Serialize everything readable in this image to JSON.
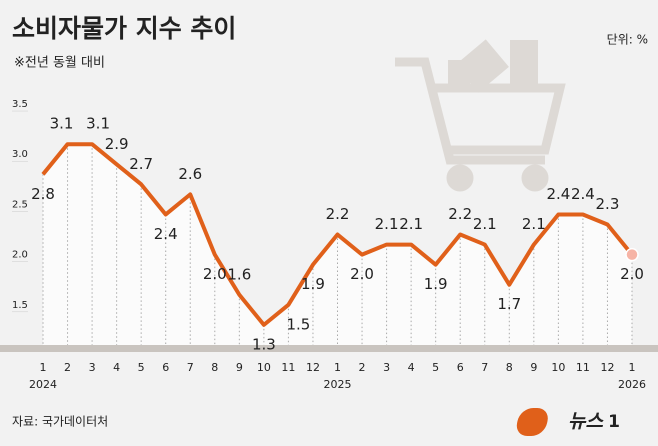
{
  "chart_data": {
    "type": "line",
    "title": "소비자물가 지수 추이",
    "subtitle": "※전년 동월 대비",
    "unit": "단위: %",
    "source": "자료: 국가데이터처",
    "categories": [
      "1",
      "2",
      "3",
      "4",
      "5",
      "6",
      "7",
      "8",
      "9",
      "10",
      "11",
      "12",
      "1",
      "2",
      "3",
      "4",
      "5",
      "6",
      "7",
      "8",
      "9",
      "10",
      "11",
      "12",
      "1"
    ],
    "year_labels": [
      "2024",
      null,
      null,
      null,
      null,
      null,
      null,
      null,
      null,
      null,
      null,
      null,
      "2025",
      null,
      null,
      null,
      null,
      null,
      null,
      null,
      null,
      null,
      null,
      null,
      "2026"
    ],
    "values": [
      2.8,
      3.1,
      3.1,
      2.9,
      2.7,
      2.4,
      2.6,
      2.0,
      1.6,
      1.3,
      1.5,
      1.9,
      2.2,
      2.0,
      2.1,
      2.1,
      1.9,
      2.2,
      2.1,
      1.7,
      2.1,
      2.4,
      2.4,
      2.3,
      2.0
    ],
    "value_labels": [
      "2.8",
      "3.1",
      "3.1",
      "2.9",
      "2.7",
      "2.4",
      "2.6",
      "2.0",
      "1.6",
      "1.3",
      "1.5",
      "1.9",
      "2.2",
      "2.0",
      "2.1",
      "2.1",
      "1.9",
      "2.2",
      "2.1",
      "1.7",
      "2.1",
      "2.4",
      "2.4",
      "2.3",
      "2.0"
    ],
    "color": "#e0601a",
    "ylim": [
      1.0,
      3.6
    ],
    "yticks": [
      {
        "value": 1.5,
        "label": "1.5"
      },
      {
        "value": 2,
        "label": "2.0"
      },
      {
        "value": 2.5,
        "label": "2.5"
      },
      {
        "value": 3,
        "label": "3.0"
      },
      {
        "value": 3.5,
        "label": "3.5"
      }
    ]
  },
  "logo": {
    "text": "뉴스",
    "badge": "1"
  }
}
